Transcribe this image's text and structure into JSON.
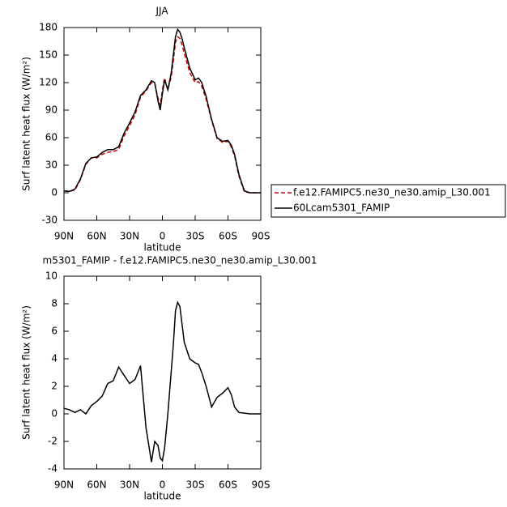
{
  "chart_data": [
    {
      "type": "line",
      "title": "JJA",
      "xlabel": "latitude",
      "ylabel": "Surf latent heat flux (W/m²)",
      "x": [
        90,
        85,
        80,
        75,
        70,
        65,
        60,
        55,
        50,
        45,
        40,
        35,
        30,
        25,
        20,
        15,
        10,
        7,
        4,
        2,
        0,
        -2,
        -5,
        -8,
        -10,
        -12,
        -14,
        -16,
        -18,
        -20,
        -25,
        -30,
        -33,
        -36,
        -40,
        -45,
        -50,
        -55,
        -60,
        -63,
        -66,
        -70,
        -75,
        -80,
        -85,
        -90
      ],
      "series": [
        {
          "name": "f.e12.FAMIPC5.ne30_ne30.amip_L30.001",
          "color": "#cc0000",
          "dashed": true,
          "values": [
            2,
            1.5,
            3,
            14,
            31,
            38,
            38,
            42,
            44,
            45,
            47,
            62,
            73,
            85,
            104,
            111,
            120,
            119,
            103,
            95,
            112,
            125,
            112,
            126,
            143,
            164,
            170,
            168,
            161,
            152,
            131,
            120,
            121,
            116,
            102,
            79,
            59,
            55,
            56,
            50,
            40,
            18,
            1,
            0,
            0,
            0
          ]
        },
        {
          "name": "60Lcam5301_FAMIP",
          "color": "#000000",
          "dashed": false,
          "values": [
            2,
            1.5,
            4,
            15,
            32,
            38,
            39,
            44,
            47,
            47,
            50,
            65,
            76,
            88,
            106,
            112,
            122,
            120,
            100,
            90,
            108,
            123,
            112,
            130,
            150,
            170,
            178,
            175,
            168,
            158,
            136,
            123,
            125,
            120,
            105,
            80,
            60,
            56,
            57,
            52,
            42,
            20,
            2,
            0,
            0,
            0
          ]
        }
      ],
      "xlim": [
        90,
        -90
      ],
      "xticks": [
        {
          "value": 90,
          "label": "90N"
        },
        {
          "value": 60,
          "label": "60N"
        },
        {
          "value": 30,
          "label": "30N"
        },
        0,
        {
          "value": -30,
          "label": "30S"
        },
        {
          "value": -60,
          "label": "60S"
        },
        {
          "value": -90,
          "label": "90S"
        }
      ],
      "ylim": [
        -30,
        180
      ],
      "yticks": [
        -30,
        0,
        30,
        60,
        90,
        120,
        150,
        180
      ],
      "legend": "right"
    },
    {
      "type": "line",
      "title": "m5301_FAMIP - f.e12.FAMIPC5.ne30_ne30.amip_L30.001",
      "xlabel": "latitude",
      "ylabel": "Surf latent heat flux (W/m²)",
      "x": [
        90,
        85,
        80,
        75,
        70,
        65,
        60,
        55,
        50,
        45,
        40,
        35,
        30,
        25,
        20,
        15,
        10,
        7,
        4,
        2,
        0,
        -2,
        -5,
        -8,
        -10,
        -12,
        -14,
        -16,
        -18,
        -20,
        -25,
        -30,
        -33,
        -36,
        -40,
        -45,
        -50,
        -55,
        -60,
        -63,
        -66,
        -70,
        -75,
        -80,
        -85,
        -90
      ],
      "series": [
        {
          "color": "#000000",
          "dashed": false,
          "values": [
            0.4,
            0.3,
            0.1,
            0.3,
            0,
            0.6,
            0.9,
            1.3,
            2.2,
            2.4,
            3.4,
            2.8,
            2.2,
            2.5,
            3.5,
            -1,
            -3.5,
            -2,
            -2.3,
            -3.2,
            -3.4,
            -2.5,
            0,
            3,
            5,
            7.5,
            8.1,
            7.8,
            6.5,
            5.2,
            4,
            3.7,
            3.6,
            3,
            2,
            0.5,
            1.2,
            1.5,
            1.9,
            1.4,
            0.5,
            0.1,
            0.05,
            0,
            0,
            0
          ]
        }
      ],
      "xlim": [
        90,
        -90
      ],
      "xticks": [
        {
          "value": 90,
          "label": "90N"
        },
        {
          "value": 60,
          "label": "60N"
        },
        {
          "value": 30,
          "label": "30N"
        },
        0,
        {
          "value": -30,
          "label": "30S"
        },
        {
          "value": -60,
          "label": "60S"
        },
        {
          "value": -90,
          "label": "90S"
        }
      ],
      "ylim": [
        -4,
        10
      ],
      "yticks": [
        -4,
        -2,
        0,
        2,
        4,
        6,
        8,
        10
      ]
    }
  ]
}
